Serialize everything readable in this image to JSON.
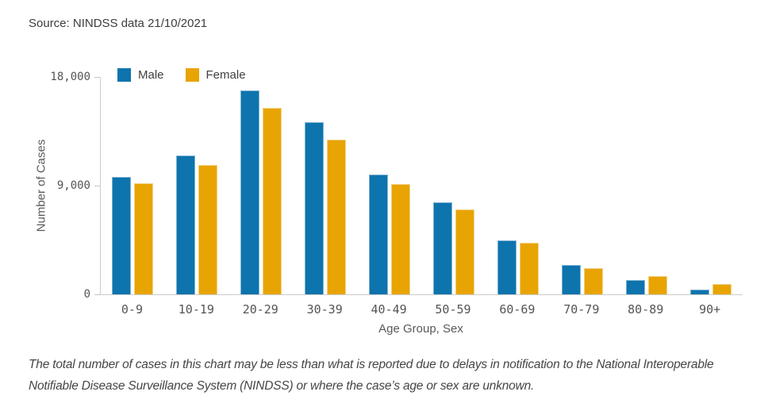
{
  "source_line": "Source: NINDSS data 21/10/2021",
  "footnote": "The total number of cases in this chart may be less than what is reported due to delays in notification to the National Interoperable Notifiable Disease Surveillance System (NINDSS) or where the case’s age or sex are unknown.",
  "colors": {
    "axis_line": "#cccccc",
    "tick_text": "#545454",
    "axis_title_text": "#595959"
  },
  "chart_data": {
    "type": "bar",
    "title": "",
    "xlabel": "Age Group, Sex",
    "ylabel": "Number of Cases",
    "ylim": [
      0,
      18000
    ],
    "yticks": [
      18000,
      9000,
      0
    ],
    "ytick_labels": [
      "18,000",
      "9,000",
      "0"
    ],
    "grid": false,
    "legend_position": "top-left",
    "categories": [
      "0-9",
      "10-19",
      "20-29",
      "30-39",
      "40-49",
      "50-59",
      "60-69",
      "70-79",
      "80-89",
      "90+"
    ],
    "series": [
      {
        "name": "Male",
        "color": "#0d74ad",
        "edge_color": "#7fb3d4",
        "values": [
          9700,
          11500,
          16900,
          14250,
          9900,
          7650,
          4500,
          2400,
          1200,
          380
        ]
      },
      {
        "name": "Female",
        "color": "#e8a402",
        "edge_color": "#f3d184",
        "values": [
          9200,
          10700,
          15450,
          12800,
          9100,
          7050,
          4250,
          2200,
          1500,
          850
        ]
      }
    ]
  }
}
